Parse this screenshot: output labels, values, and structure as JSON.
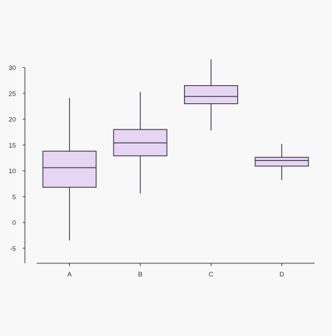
{
  "colors": {
    "page_background": "#f8f8f8",
    "plot_background": "#f8f8f8",
    "box_fill": "#e6d6f3",
    "box_stroke": "#3a3546",
    "axis": "#333333",
    "tick_label": "#333333"
  },
  "chart_data": {
    "type": "boxplot",
    "title": "",
    "xlabel": "",
    "ylabel": "",
    "ylim": [
      -8,
      33
    ],
    "yticks": [
      -5,
      0,
      5,
      10,
      15,
      20,
      25,
      30
    ],
    "ytick_labels": [
      "-5",
      "0",
      "5",
      "10",
      "15",
      "20",
      "25",
      "30"
    ],
    "categories": [
      "A",
      "B",
      "C",
      "D"
    ],
    "boxes": [
      {
        "category": "A",
        "whisker_low": -3.5,
        "q1": 6.8,
        "median": 10.6,
        "q3": 13.8,
        "whisker_high": 24.1
      },
      {
        "category": "B",
        "whisker_low": 5.6,
        "q1": 12.9,
        "median": 15.4,
        "q3": 18.0,
        "whisker_high": 25.3
      },
      {
        "category": "C",
        "whisker_low": 17.8,
        "q1": 23.0,
        "median": 24.4,
        "q3": 26.5,
        "whisker_high": 31.6
      },
      {
        "category": "D",
        "whisker_low": 8.2,
        "q1": 10.9,
        "median": 12.0,
        "q3": 12.6,
        "whisker_high": 15.2
      }
    ],
    "grid": false,
    "legend": "none"
  }
}
